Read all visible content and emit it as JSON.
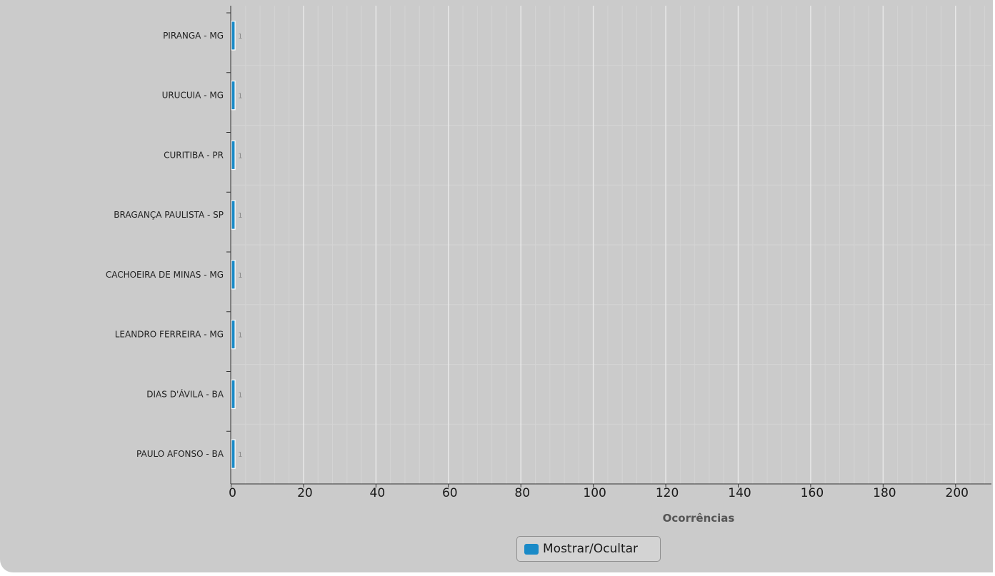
{
  "chart_data": {
    "type": "bar",
    "orientation": "horizontal",
    "categories": [
      "PIRANGA - MG",
      "URUCUIA - MG",
      "CURITIBA - PR",
      "BRAGANÇA PAULISTA - SP",
      "CACHOEIRA DE MINAS - MG",
      "LEANDRO FERREIRA - MG",
      "DIAS D'ÁVILA - BA",
      "PAULO AFONSO - BA"
    ],
    "series": [
      {
        "values": [
          1,
          1,
          1,
          1,
          1,
          1,
          1,
          1
        ]
      }
    ],
    "data_labels": [
      "1",
      "1",
      "1",
      "1",
      "1",
      "1",
      "1",
      "1"
    ],
    "xlabel": "Ocorrências",
    "ylabel": "",
    "xlim": [
      0,
      210
    ],
    "xticks": [
      "0",
      "20",
      "40",
      "60",
      "80",
      "100",
      "120",
      "140",
      "160",
      "180",
      "200"
    ],
    "grid": true,
    "legend_position": "bottom",
    "colors": {
      "bar": "#1a8ac7",
      "bar_stroke": "#ffffff",
      "grid_major": "#e8e8e8",
      "grid_minor": "#d4d4d4",
      "background": "#cbcbcb",
      "axis": "#333333"
    }
  },
  "legend": {
    "toggle_label": "Mostrar/Ocultar"
  }
}
